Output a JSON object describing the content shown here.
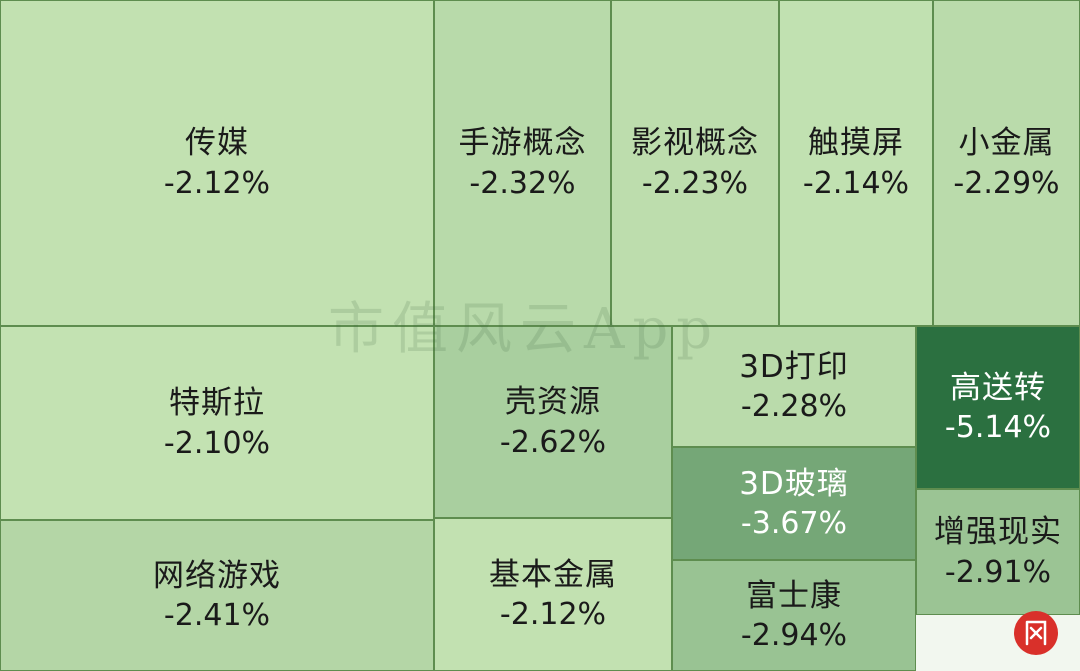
{
  "chart_data": {
    "type": "treemap",
    "title": "",
    "colors": {
      "scale_light": "#c3e2b2",
      "scale_dark": "#2b7040",
      "text_light": "#1a1a1a",
      "text_dark": "#ffffff",
      "border": "#5e8d4f"
    },
    "tiles": [
      {
        "name": "传媒",
        "value": "-2.12%",
        "change": -2.12
      },
      {
        "name": "手游概念",
        "value": "-2.32%",
        "change": -2.32
      },
      {
        "name": "影视概念",
        "value": "-2.23%",
        "change": -2.23
      },
      {
        "name": "触摸屏",
        "value": "-2.14%",
        "change": -2.14
      },
      {
        "name": "小金属",
        "value": "-2.29%",
        "change": -2.29
      },
      {
        "name": "特斯拉",
        "value": "-2.10%",
        "change": -2.1
      },
      {
        "name": "壳资源",
        "value": "-2.62%",
        "change": -2.62
      },
      {
        "name": "3D打印",
        "value": "-2.28%",
        "change": -2.28
      },
      {
        "name": "高送转",
        "value": "-5.14%",
        "change": -5.14
      },
      {
        "name": "3D玻璃",
        "value": "-3.67%",
        "change": -3.67
      },
      {
        "name": "增强现实",
        "value": "-2.91%",
        "change": -2.91
      },
      {
        "name": "网络游戏",
        "value": "-2.41%",
        "change": -2.41
      },
      {
        "name": "基本金属",
        "value": "-2.12%",
        "change": -2.12
      },
      {
        "name": "富士康",
        "value": "-2.94%",
        "change": -2.94
      }
    ]
  },
  "watermark": {
    "text": "市值风云App",
    "seal_text": "风云"
  }
}
